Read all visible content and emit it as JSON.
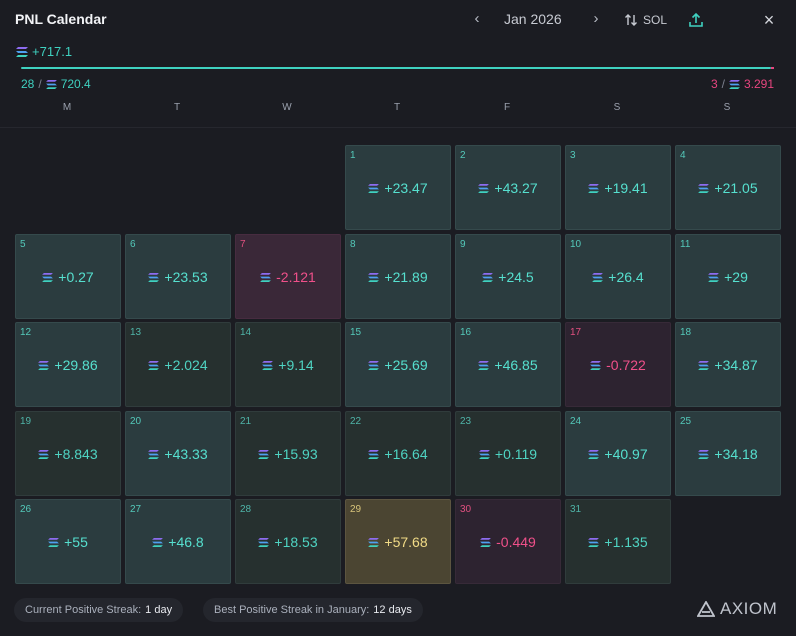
{
  "header": {
    "title": "PNL Calendar",
    "month": "Jan 2026",
    "prev_icon": "chevron-left-icon",
    "next_icon": "chevron-right-icon",
    "currency_label": "SOL",
    "sort_icon": "swap-vertical-icon",
    "share_icon": "share-upload-icon",
    "close_icon": "close-icon"
  },
  "summary": {
    "total": "+717.1",
    "positive_days": "28",
    "positive_total": "720.4",
    "negative_days": "3",
    "negative_total": "3.291",
    "positive_share": 0.9955
  },
  "weekdays": [
    "M",
    "T",
    "W",
    "T",
    "F",
    "S",
    "S"
  ],
  "days": [
    {
      "day": "1",
      "value": "+23.47",
      "tone": "pos"
    },
    {
      "day": "2",
      "value": "+43.27",
      "tone": "pos"
    },
    {
      "day": "3",
      "value": "+19.41",
      "tone": "pos"
    },
    {
      "day": "4",
      "value": "+21.05",
      "tone": "pos"
    },
    {
      "day": "5",
      "value": "+0.27",
      "tone": "pos"
    },
    {
      "day": "6",
      "value": "+23.53",
      "tone": "pos"
    },
    {
      "day": "7",
      "value": "-2.121",
      "tone": "neg"
    },
    {
      "day": "8",
      "value": "+21.89",
      "tone": "pos"
    },
    {
      "day": "9",
      "value": "+24.5",
      "tone": "pos"
    },
    {
      "day": "10",
      "value": "+26.4",
      "tone": "pos"
    },
    {
      "day": "11",
      "value": "+29",
      "tone": "pos"
    },
    {
      "day": "12",
      "value": "+29.86",
      "tone": "pos"
    },
    {
      "day": "13",
      "value": "+2.024",
      "tone": "low"
    },
    {
      "day": "14",
      "value": "+9.14",
      "tone": "low"
    },
    {
      "day": "15",
      "value": "+25.69",
      "tone": "pos"
    },
    {
      "day": "16",
      "value": "+46.85",
      "tone": "pos"
    },
    {
      "day": "17",
      "value": "-0.722",
      "tone": "negweak"
    },
    {
      "day": "18",
      "value": "+34.87",
      "tone": "pos"
    },
    {
      "day": "19",
      "value": "+8.843",
      "tone": "low"
    },
    {
      "day": "20",
      "value": "+43.33",
      "tone": "pos"
    },
    {
      "day": "21",
      "value": "+15.93",
      "tone": "low"
    },
    {
      "day": "22",
      "value": "+16.64",
      "tone": "low"
    },
    {
      "day": "23",
      "value": "+0.119",
      "tone": "low"
    },
    {
      "day": "24",
      "value": "+40.97",
      "tone": "pos"
    },
    {
      "day": "25",
      "value": "+34.18",
      "tone": "pos"
    },
    {
      "day": "26",
      "value": "+55",
      "tone": "pos"
    },
    {
      "day": "27",
      "value": "+46.8",
      "tone": "pos"
    },
    {
      "day": "28",
      "value": "+18.53",
      "tone": "low"
    },
    {
      "day": "29",
      "value": "+57.68",
      "tone": "best"
    },
    {
      "day": "30",
      "value": "-0.449",
      "tone": "negweak"
    },
    {
      "day": "31",
      "value": "+1.135",
      "tone": "low"
    }
  ],
  "first_weekday_index": 3,
  "footer": {
    "current_streak_label": "Current Positive Streak:",
    "current_streak_value": "1 day",
    "best_streak_label": "Best Positive Streak in January:",
    "best_streak_value": "12 days",
    "logo_text": "AXIOM"
  },
  "colors": {
    "positive": "#56e0cf",
    "negative": "#f0508a",
    "best": "#f2dc87",
    "background": "#1b1c22"
  }
}
